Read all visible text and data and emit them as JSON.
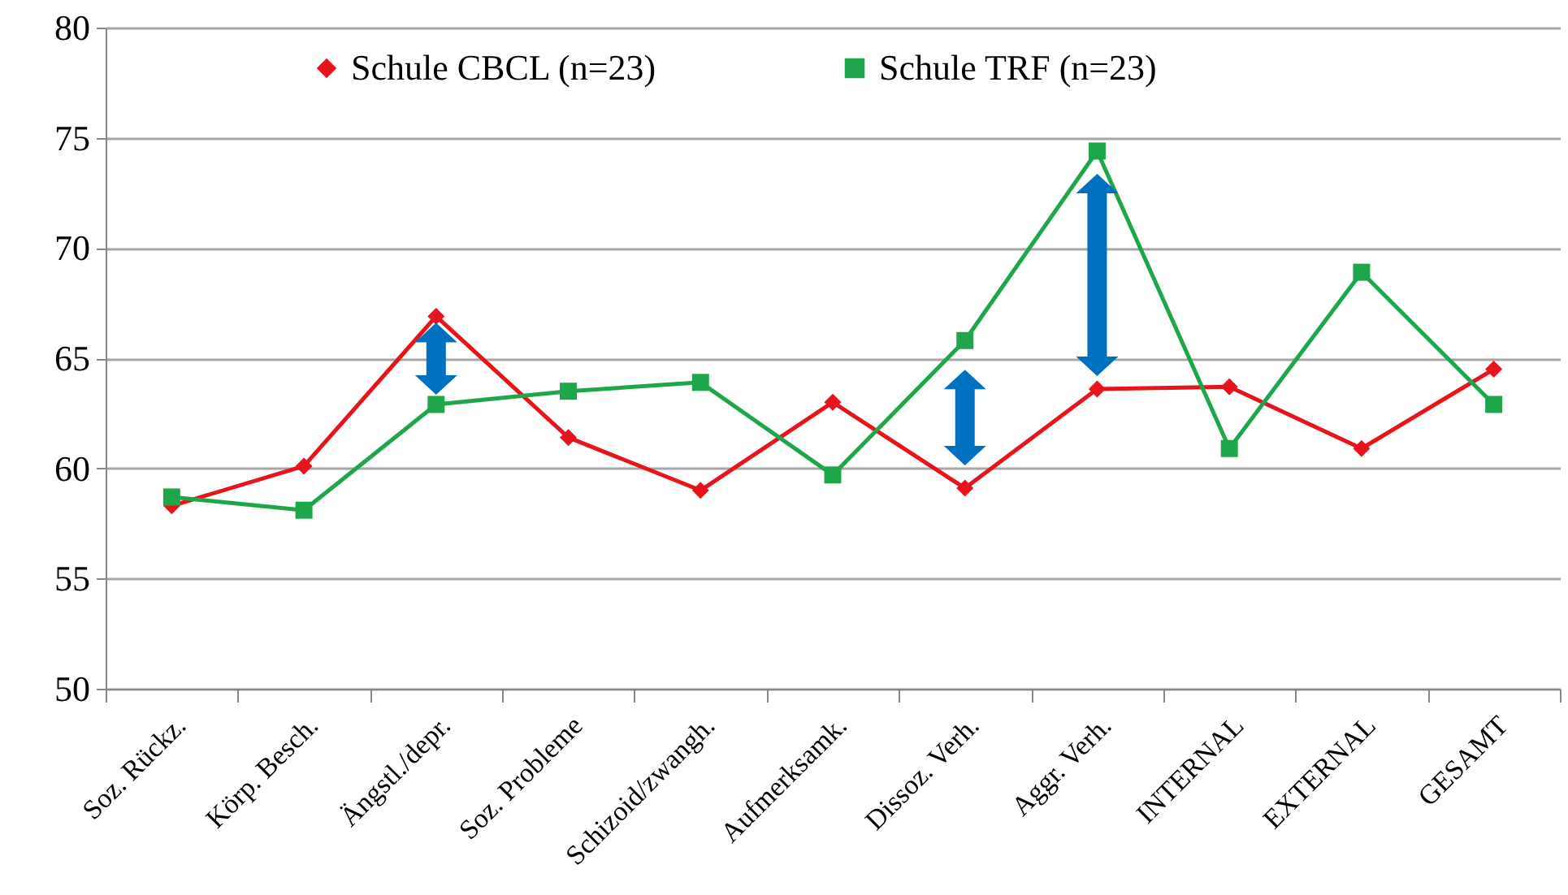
{
  "chart_data": {
    "type": "line",
    "categories": [
      "Soz. Rückz.",
      "Körp. Besch.",
      "Ängstl./depr.",
      "Soz. Probleme",
      "Schizoid/zwangh.",
      "Aufmerksamk.",
      "Dissoz. Verh.",
      "Aggr. Verh.",
      "INTERNAL",
      "EXTERNAL",
      "GESAMT"
    ],
    "series": [
      {
        "name": "Schule CBCL (n=23)",
        "color": "#e8141b",
        "marker": "diamond",
        "values": [
          58.3,
          60.1,
          66.9,
          61.4,
          59.0,
          63.0,
          59.1,
          63.6,
          63.7,
          60.9,
          64.5
        ]
      },
      {
        "name": "Schule TRF (n=23)",
        "color": "#1fa64a",
        "marker": "square",
        "values": [
          58.7,
          58.1,
          62.9,
          63.5,
          63.9,
          59.7,
          65.8,
          74.4,
          60.9,
          68.9,
          62.9
        ]
      }
    ],
    "ylim": [
      50,
      80
    ],
    "yticks": [
      50,
      55,
      60,
      65,
      70,
      75,
      80
    ],
    "grid": "y",
    "legend": "top"
  }
}
